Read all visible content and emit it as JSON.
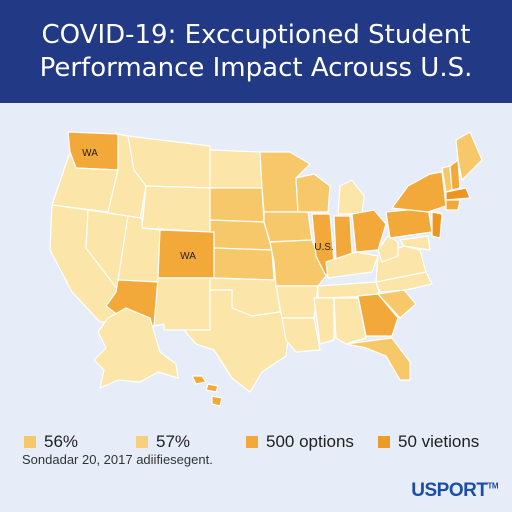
{
  "header": {
    "title_line1": "COVID-19:   Exccuptioned Student",
    "title_line2": "Performance Impact Acrouss U.S."
  },
  "colors": {
    "header_bg": "#223a86",
    "background": "#e6edf8",
    "light_fill": "#fbe5a8",
    "medium_fill": "#f7c86a",
    "dark_fill": "#f2a93a",
    "darkest_fill": "#ee9420",
    "state_border": "#ffffff"
  },
  "map": {
    "state_labels": [
      {
        "key": "wa",
        "text": "WA"
      },
      {
        "key": "co",
        "text": "WA"
      },
      {
        "key": "il",
        "text": "U.S."
      }
    ]
  },
  "legend": {
    "items": [
      {
        "label": "56%",
        "color": "#f7c86a"
      },
      {
        "label": "57%",
        "color": "#f7cf7f"
      },
      {
        "label": "500 options",
        "color": "#f2a93a"
      },
      {
        "label": "50 vietions",
        "color": "#ee9a28"
      }
    ]
  },
  "footer": {
    "note": "Sondadar 20, 2017 adiifiesegent.",
    "brand": "USPORT",
    "brand_mark": "TM"
  }
}
